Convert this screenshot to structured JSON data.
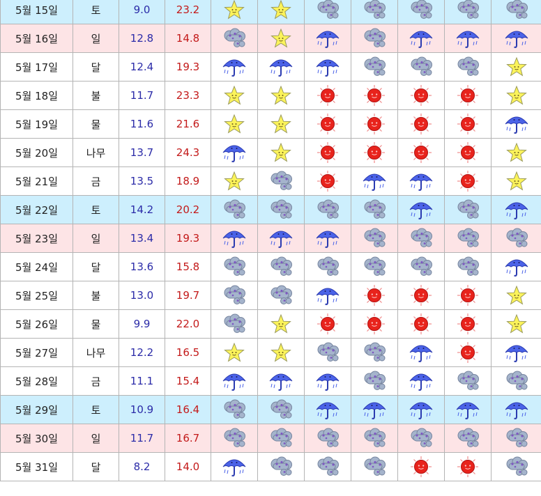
{
  "rows": [
    {
      "date": "5월 15일",
      "day": "토",
      "min": "9.0",
      "max": "23.2",
      "type": "sat",
      "icons": [
        "star-icon",
        "star-icon",
        "cloud-icon",
        "cloud-icon",
        "cloud-icon",
        "cloud-icon",
        "cloud-icon"
      ]
    },
    {
      "date": "5월 16일",
      "day": "일",
      "min": "12.8",
      "max": "14.8",
      "type": "sun",
      "icons": [
        "cloud-icon",
        "star-icon",
        "umbrella-icon",
        "cloud-icon",
        "umbrella-icon",
        "umbrella-icon",
        "umbrella-icon"
      ]
    },
    {
      "date": "5월 17일",
      "day": "달",
      "min": "12.4",
      "max": "19.3",
      "type": "",
      "icons": [
        "umbrella-icon",
        "umbrella-icon",
        "umbrella-icon",
        "cloud-icon",
        "cloud-icon",
        "cloud-icon",
        "star-icon"
      ]
    },
    {
      "date": "5월 18일",
      "day": "불",
      "min": "11.7",
      "max": "23.3",
      "type": "",
      "icons": [
        "star-icon",
        "star-icon",
        "sun-icon",
        "sun-icon",
        "sun-icon",
        "sun-icon",
        "star-icon"
      ]
    },
    {
      "date": "5월 19일",
      "day": "물",
      "min": "11.6",
      "max": "21.6",
      "type": "",
      "icons": [
        "star-icon",
        "star-icon",
        "sun-icon",
        "sun-icon",
        "sun-icon",
        "sun-icon",
        "umbrella-icon"
      ]
    },
    {
      "date": "5월 20일",
      "day": "나무",
      "min": "13.7",
      "max": "24.3",
      "type": "",
      "icons": [
        "umbrella-icon",
        "star-icon",
        "sun-icon",
        "sun-icon",
        "sun-icon",
        "sun-icon",
        "star-icon"
      ]
    },
    {
      "date": "5월 21일",
      "day": "금",
      "min": "13.5",
      "max": "18.9",
      "type": "",
      "icons": [
        "star-icon",
        "cloud-icon",
        "sun-icon",
        "umbrella-icon",
        "umbrella-icon",
        "sun-icon",
        "star-icon"
      ]
    },
    {
      "date": "5월 22일",
      "day": "토",
      "min": "14.2",
      "max": "20.2",
      "type": "sat",
      "icons": [
        "cloud-icon",
        "cloud-icon",
        "cloud-icon",
        "cloud-icon",
        "umbrella-icon",
        "cloud-icon",
        "umbrella-icon"
      ]
    },
    {
      "date": "5월 23일",
      "day": "일",
      "min": "13.4",
      "max": "19.3",
      "type": "sun",
      "icons": [
        "umbrella-icon",
        "umbrella-icon",
        "umbrella-icon",
        "cloud-icon",
        "cloud-icon",
        "cloud-icon",
        "cloud-icon"
      ]
    },
    {
      "date": "5월 24일",
      "day": "달",
      "min": "13.6",
      "max": "15.8",
      "type": "",
      "icons": [
        "cloud-icon",
        "cloud-icon",
        "cloud-icon",
        "cloud-icon",
        "cloud-icon",
        "cloud-icon",
        "umbrella-icon"
      ]
    },
    {
      "date": "5월 25일",
      "day": "불",
      "min": "13.0",
      "max": "19.7",
      "type": "",
      "icons": [
        "cloud-icon",
        "cloud-icon",
        "umbrella-icon",
        "sun-icon",
        "sun-icon",
        "sun-icon",
        "star-icon"
      ]
    },
    {
      "date": "5월 26일",
      "day": "물",
      "min": "9.9",
      "max": "22.0",
      "type": "",
      "icons": [
        "cloud-icon",
        "star-icon",
        "sun-icon",
        "sun-icon",
        "sun-icon",
        "sun-icon",
        "star-icon"
      ]
    },
    {
      "date": "5월 27일",
      "day": "나무",
      "min": "12.2",
      "max": "16.5",
      "type": "",
      "icons": [
        "star-icon",
        "star-icon",
        "cloud-icon",
        "cloud-icon",
        "umbrella-icon",
        "sun-icon",
        "umbrella-icon"
      ]
    },
    {
      "date": "5월 28일",
      "day": "금",
      "min": "11.1",
      "max": "15.4",
      "type": "",
      "icons": [
        "umbrella-icon",
        "umbrella-icon",
        "umbrella-icon",
        "cloud-icon",
        "umbrella-icon",
        "cloud-icon",
        "cloud-icon"
      ]
    },
    {
      "date": "5월 29일",
      "day": "토",
      "min": "10.9",
      "max": "16.4",
      "type": "sat",
      "icons": [
        "cloud-icon",
        "cloud-icon",
        "umbrella-icon",
        "umbrella-icon",
        "umbrella-icon",
        "umbrella-icon",
        "umbrella-icon"
      ]
    },
    {
      "date": "5월 30일",
      "day": "일",
      "min": "11.7",
      "max": "16.7",
      "type": "sun",
      "icons": [
        "cloud-icon",
        "cloud-icon",
        "cloud-icon",
        "cloud-icon",
        "cloud-icon",
        "cloud-icon",
        "cloud-icon"
      ]
    },
    {
      "date": "5월 31일",
      "day": "달",
      "min": "8.2",
      "max": "14.0",
      "type": "",
      "icons": [
        "umbrella-icon",
        "cloud-icon",
        "cloud-icon",
        "cloud-icon",
        "sun-icon",
        "sun-icon",
        "cloud-icon"
      ]
    }
  ],
  "colors": {
    "saturday_bg": "#cdeffd",
    "sunday_bg": "#fde4e6",
    "min_text": "#2b2ba8",
    "max_text": "#c31a1a",
    "grid_border": "#b4b4b4"
  }
}
